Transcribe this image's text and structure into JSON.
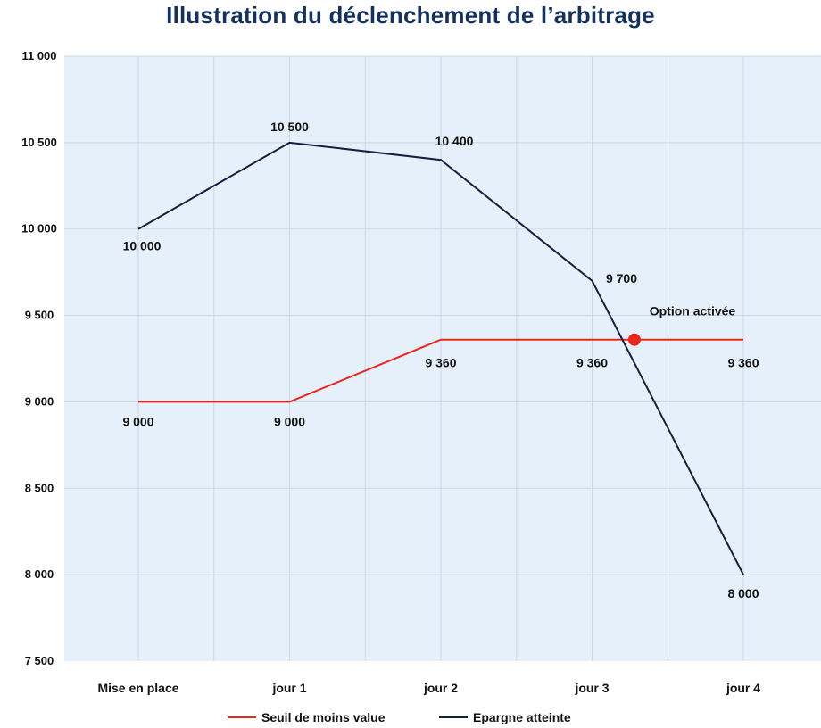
{
  "chart_data": {
    "type": "line",
    "title": "Illustration du déclenchement de l’arbitrage",
    "categories": [
      "Mise en place",
      "jour 1",
      "jour 2",
      "jour 3",
      "jour 4"
    ],
    "ylim": [
      7500,
      11000
    ],
    "yticks": [
      7500,
      8000,
      8500,
      9000,
      9500,
      10000,
      10500,
      11000
    ],
    "ytick_labels": [
      "7 500",
      "8 000",
      "8 500",
      "9 000",
      "9 500",
      "10 000",
      "10 500",
      "11 000"
    ],
    "grid": true,
    "legend_position": "bottom",
    "series": [
      {
        "name": "Seuil de moins value",
        "color": "#e8261e",
        "values": [
          9000,
          9000,
          9360,
          9360,
          9360
        ],
        "labels": [
          "9 000",
          "9 000",
          "9 360",
          "9 360",
          "9 360"
        ]
      },
      {
        "name": "Epargne atteinte",
        "color": "#12213f",
        "values": [
          10000,
          10500,
          10400,
          9700,
          8000
        ],
        "labels": [
          "10 000",
          "10 500",
          "10 400",
          "9 700",
          "8 000"
        ]
      }
    ],
    "annotation": {
      "text": "Option activée",
      "x_category_position": 3.28,
      "y": 9360,
      "color": "#e8261e"
    }
  }
}
